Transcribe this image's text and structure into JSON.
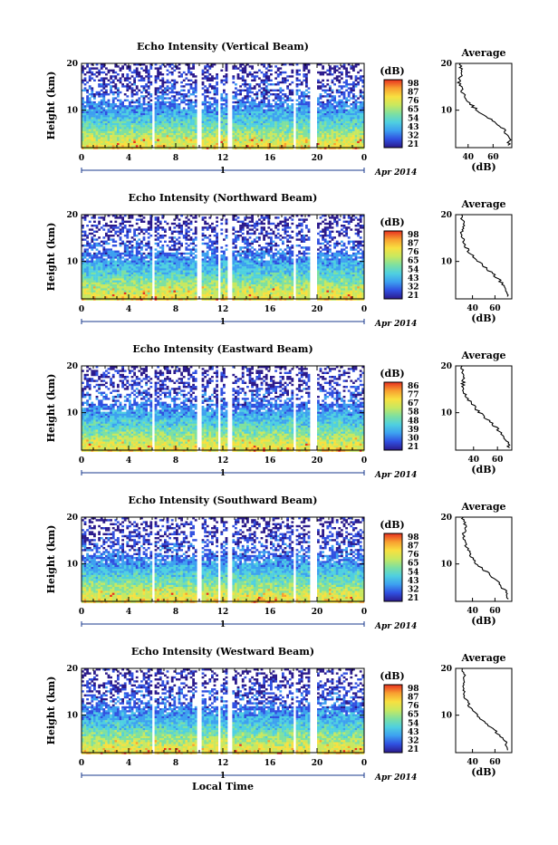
{
  "chart_data": [
    {
      "type": "heatmap",
      "title": "Echo Intensity (Vertical Beam)",
      "ylabel": "Height (km)",
      "x_ticks": [
        "0",
        "4",
        "8",
        "12",
        "16",
        "20",
        "0"
      ],
      "y_ticks": [
        "20",
        "10"
      ],
      "date_day": "1",
      "date_label": "Apr 2014",
      "xlim": [
        0,
        24
      ],
      "ylim": [
        2,
        20
      ],
      "colorbar": {
        "unit": "(dB)",
        "tick_labels": [
          "98",
          "87",
          "76",
          "65",
          "54",
          "43",
          "32",
          "21"
        ],
        "range": [
          21,
          98
        ]
      },
      "profile": {
        "title": "Average",
        "xlabel": "(dB)",
        "x_ticks": [
          "40",
          "60"
        ],
        "y_ticks": [
          "20",
          "10"
        ],
        "xlim": [
          30,
          75
        ],
        "heights": [
          2.5,
          4,
          6,
          8,
          10,
          12,
          14,
          16,
          18,
          20
        ],
        "values": [
          72,
          73,
          68,
          58,
          47,
          39,
          35,
          33,
          35,
          33
        ]
      }
    },
    {
      "type": "heatmap",
      "title": "Echo Intensity (Northward Beam)",
      "ylabel": "Height (km)",
      "x_ticks": [
        "0",
        "4",
        "8",
        "12",
        "16",
        "20",
        "0"
      ],
      "y_ticks": [
        "20",
        "10"
      ],
      "date_day": "1",
      "date_label": "Apr 2014",
      "xlim": [
        0,
        24
      ],
      "ylim": [
        2,
        20
      ],
      "colorbar": {
        "unit": "(dB)",
        "tick_labels": [
          "98",
          "87",
          "76",
          "65",
          "54",
          "43",
          "32",
          "21"
        ],
        "range": [
          21,
          98
        ]
      },
      "profile": {
        "title": "Average",
        "xlabel": "(dB)",
        "x_ticks": [
          "40",
          "60"
        ],
        "y_ticks": [
          "20",
          "10"
        ],
        "xlim": [
          25,
          75
        ],
        "heights": [
          2.5,
          4,
          6,
          8,
          10,
          12,
          14,
          16,
          18,
          20
        ],
        "values": [
          72,
          70,
          64,
          55,
          45,
          37,
          32,
          30,
          32,
          30
        ]
      }
    },
    {
      "type": "heatmap",
      "title": "Echo Intensity (Eastward Beam)",
      "ylabel": "Height (km)",
      "x_ticks": [
        "0",
        "4",
        "8",
        "12",
        "16",
        "20",
        "0"
      ],
      "y_ticks": [
        "20",
        "10"
      ],
      "date_day": "1",
      "date_label": "Apr 2014",
      "xlim": [
        0,
        24
      ],
      "ylim": [
        2,
        20
      ],
      "colorbar": {
        "unit": "(dB)",
        "tick_labels": [
          "86",
          "77",
          "67",
          "58",
          "48",
          "39",
          "30",
          "21"
        ],
        "range": [
          21,
          86
        ]
      },
      "profile": {
        "title": "Average",
        "xlabel": "(dB)",
        "x_ticks": [
          "40",
          "60"
        ],
        "y_ticks": [
          "20",
          "10"
        ],
        "xlim": [
          25,
          72
        ],
        "heights": [
          2.5,
          4,
          6,
          8,
          10,
          12,
          14,
          16,
          18,
          20
        ],
        "values": [
          70,
          68,
          62,
          54,
          45,
          38,
          33,
          31,
          32,
          30
        ]
      }
    },
    {
      "type": "heatmap",
      "title": "Echo Intensity (Southward Beam)",
      "ylabel": "Height (km)",
      "x_ticks": [
        "0",
        "4",
        "8",
        "12",
        "16",
        "20",
        "0"
      ],
      "y_ticks": [
        "20",
        "10"
      ],
      "date_day": "1",
      "date_label": "Apr 2014",
      "xlim": [
        0,
        24
      ],
      "ylim": [
        2,
        20
      ],
      "colorbar": {
        "unit": "(dB)",
        "tick_labels": [
          "98",
          "87",
          "76",
          "65",
          "54",
          "43",
          "32",
          "21"
        ],
        "range": [
          21,
          98
        ]
      },
      "profile": {
        "title": "Average",
        "xlabel": "(dB)",
        "x_ticks": [
          "40",
          "60"
        ],
        "y_ticks": [
          "20",
          "10"
        ],
        "xlim": [
          25,
          75
        ],
        "heights": [
          2.5,
          4,
          6,
          8,
          10,
          12,
          14,
          16,
          18,
          20
        ],
        "values": [
          72,
          70,
          63,
          54,
          44,
          38,
          34,
          32,
          34,
          31
        ]
      }
    },
    {
      "type": "heatmap",
      "title": "Echo Intensity (Westward Beam)",
      "ylabel": "Height (km)",
      "xlabel": "Local Time",
      "x_ticks": [
        "0",
        "4",
        "8",
        "12",
        "16",
        "20",
        "0"
      ],
      "y_ticks": [
        "20",
        "10"
      ],
      "date_day": "1",
      "date_label": "Apr 2014",
      "xlim": [
        0,
        24
      ],
      "ylim": [
        2,
        20
      ],
      "colorbar": {
        "unit": "(dB)",
        "tick_labels": [
          "98",
          "87",
          "76",
          "65",
          "54",
          "43",
          "32",
          "21"
        ],
        "range": [
          21,
          98
        ]
      },
      "profile": {
        "title": "Average",
        "xlabel": "(dB)",
        "x_ticks": [
          "40",
          "60"
        ],
        "y_ticks": [
          "20",
          "10"
        ],
        "xlim": [
          25,
          75
        ],
        "heights": [
          2.5,
          4,
          6,
          8,
          10,
          12,
          14,
          16,
          18,
          20
        ],
        "values": [
          72,
          70,
          63,
          54,
          44,
          37,
          33,
          31,
          33,
          30
        ]
      }
    }
  ],
  "data_gaps_hours": [
    [
      5.8,
      6.1
    ],
    [
      9.7,
      10.1
    ],
    [
      11.4,
      11.7
    ],
    [
      12.3,
      12.6
    ],
    [
      17.9,
      18.2
    ],
    [
      19.3,
      20.0
    ]
  ],
  "colors": {
    "colormap": [
      "#2b1a8c",
      "#3050e0",
      "#3da0f0",
      "#4fd0e0",
      "#7ee0a0",
      "#c8e860",
      "#f8e040",
      "#f8a030",
      "#e83020"
    ]
  }
}
